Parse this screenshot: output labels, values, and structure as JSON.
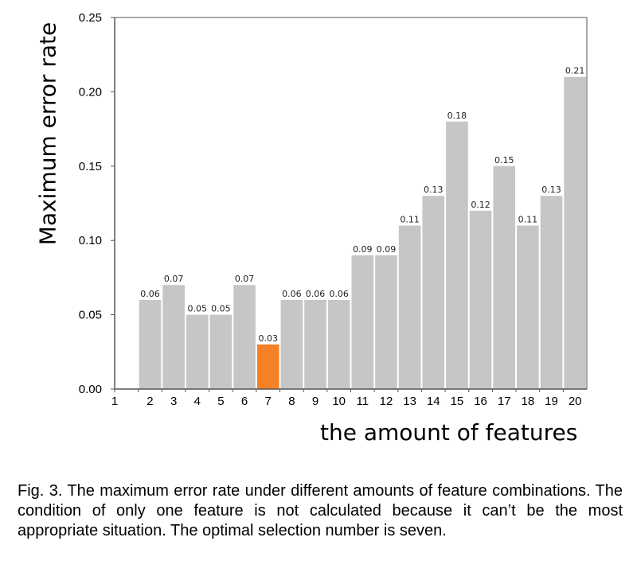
{
  "chart_data": {
    "type": "bar",
    "xlabel": "the amount of features",
    "ylabel": "Maximum error rate",
    "ylim": [
      0,
      0.25
    ],
    "yticks": [
      "0.00",
      "0.05",
      "0.10",
      "0.15",
      "0.20",
      "0.25"
    ],
    "categories": [
      "1",
      "2",
      "3",
      "4",
      "5",
      "6",
      "7",
      "8",
      "9",
      "10",
      "11",
      "12",
      "13",
      "14",
      "15",
      "16",
      "17",
      "18",
      "19",
      "20"
    ],
    "values": [
      null,
      0.06,
      0.07,
      0.05,
      0.05,
      0.07,
      0.03,
      0.06,
      0.06,
      0.06,
      0.09,
      0.09,
      0.11,
      0.13,
      0.18,
      0.12,
      0.15,
      0.11,
      0.13,
      0.21
    ],
    "labels": [
      "",
      "0.06",
      "0.07",
      "0.05",
      "0.05",
      "0.07",
      "0.03",
      "0.06",
      "0.06",
      "0.06",
      "0.09",
      "0.09",
      "0.11",
      "0.13",
      "0.18",
      "0.12",
      "0.15",
      "0.11",
      "0.13",
      "0.21"
    ],
    "highlight_category": "7",
    "colors": {
      "bar": "#c6c6c6",
      "highlight": "#f58025",
      "axis": "#555555"
    },
    "grid": false
  },
  "caption": "Fig. 3.  The maximum error rate under different amounts of feature combinations. The condition of only one feature is not calculated because it can’t be the most appropriate situation. The optimal selection number is seven."
}
